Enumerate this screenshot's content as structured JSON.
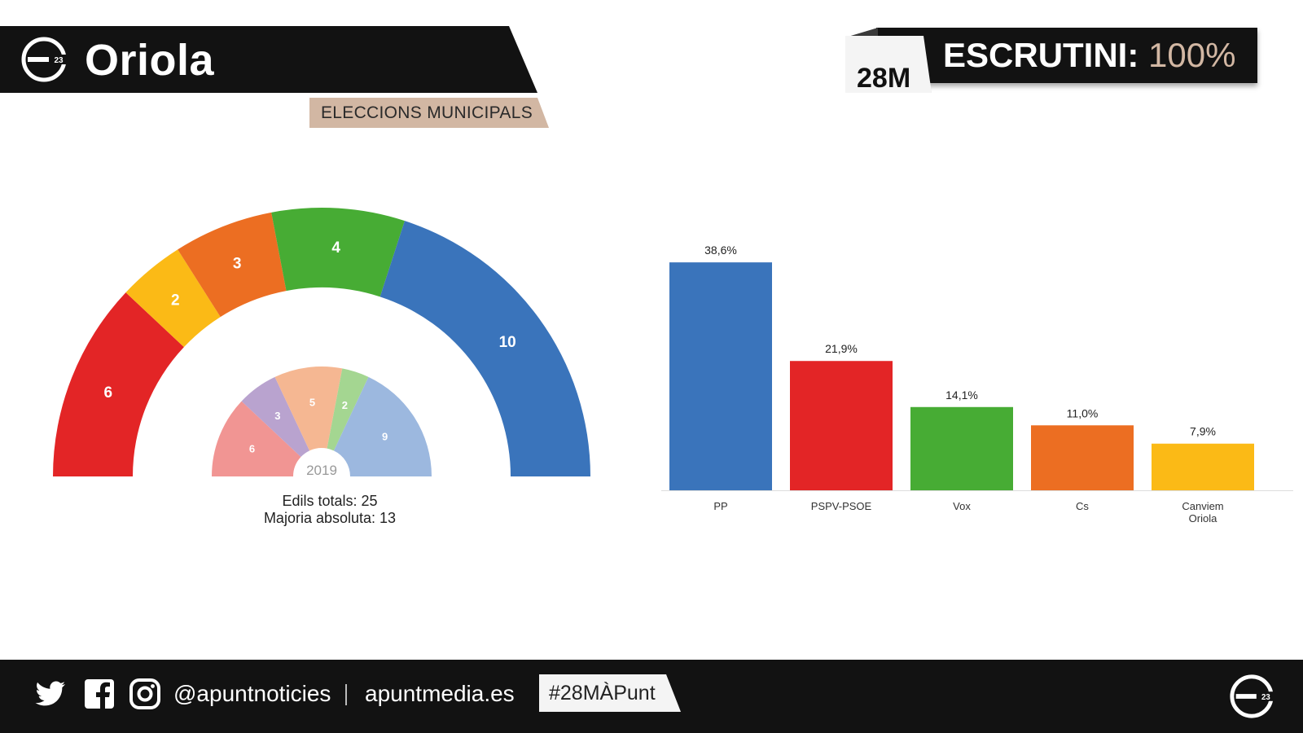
{
  "header": {
    "title": "Oriola",
    "subtitle": "ELECCIONS MUNICIPALS",
    "date_tag": "28M",
    "scrutiny_label": "ESCRUTINI:",
    "scrutiny_value": "100%"
  },
  "footer": {
    "handle": "@apuntnoticies",
    "website": "apuntmedia.es",
    "hashtag": "#28MÀPunt",
    "icons": [
      "twitter-icon",
      "facebook-icon",
      "instagram-icon"
    ]
  },
  "chart_data": [
    {
      "type": "hemicycle",
      "series": [
        {
          "party": "PSPV-PSOE",
          "seats": 6,
          "color": "#e32526"
        },
        {
          "party": "Canviem Oriola",
          "seats": 2,
          "color": "#fbba16"
        },
        {
          "party": "Cs",
          "seats": 3,
          "color": "#ec6e22"
        },
        {
          "party": "Vox",
          "seats": 4,
          "color": "#47ac34"
        },
        {
          "party": "PP",
          "seats": 10,
          "color": "#3a74bb"
        }
      ],
      "previous": {
        "label": "2019",
        "series": [
          {
            "seats": 6,
            "color": "#f19593"
          },
          {
            "seats": 3,
            "color": "#b9a3cf"
          },
          {
            "seats": 5,
            "color": "#f5b792"
          },
          {
            "seats": 2,
            "color": "#a4d691"
          },
          {
            "seats": 9,
            "color": "#9cb8df"
          }
        ]
      },
      "total_label": "Edils totals: 25",
      "majority_label": "Majoria absoluta: 13"
    },
    {
      "type": "bar",
      "categories": [
        "PP",
        "PSPV-PSOE",
        "Vox",
        "Cs",
        "Canviem Oriola"
      ],
      "values": [
        38.6,
        21.9,
        14.1,
        11.0,
        7.9
      ],
      "labels": [
        "38,6%",
        "21,9%",
        "14,1%",
        "11,0%",
        "7,9%"
      ],
      "colors": [
        "#3a74bb",
        "#e32526",
        "#47ac34",
        "#ec6e22",
        "#fbba16"
      ],
      "ylim": [
        0,
        40
      ],
      "grid": false
    }
  ]
}
